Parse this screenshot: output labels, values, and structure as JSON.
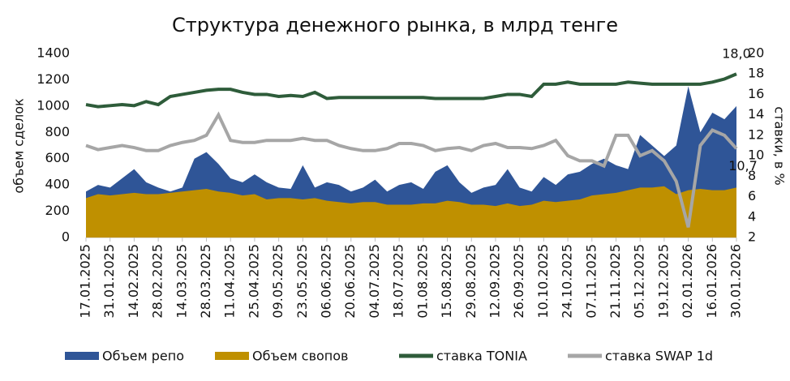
{
  "chart_data": {
    "type": "area_line",
    "title": "Структура денежного рынка, в млрд тенге",
    "y_label": "объем сделок",
    "y2_label": "ставки, в %",
    "categories": [
      "17.01.2025",
      null,
      "31.01.2025",
      null,
      "14.02.2025",
      null,
      "28.02.2025",
      null,
      "14.03.2025",
      null,
      "28.03.2025",
      null,
      "11.04.2025",
      null,
      "25.04.2025",
      null,
      "09.05.2025",
      null,
      "23.05.2025",
      null,
      "06.06.2025",
      null,
      "20.06.2025",
      null,
      "04.07.2025",
      null,
      "18.07.2025",
      null,
      "01.08.2025",
      null,
      "15.08.2025",
      null,
      "29.08.2025",
      null,
      "12.09.2025",
      null,
      "26.09.2025",
      null,
      "10.10.2025",
      null,
      "24.10.2025",
      null,
      "07.11.2025",
      null,
      "21.11.2025",
      null,
      "05.12.2025",
      null,
      "19.12.2025",
      null,
      "02.01.2026",
      null,
      "16.01.2026",
      null,
      "30.01.2026"
    ],
    "ylim": [
      0,
      1400
    ],
    "yticks": [
      0,
      200,
      400,
      600,
      800,
      1000,
      1200,
      1400
    ],
    "y2lim": [
      2,
      20
    ],
    "y2ticks": [
      2,
      4,
      6,
      8,
      10,
      12,
      14,
      16,
      18,
      20
    ],
    "legend": "bottom",
    "series": [
      {
        "name": "Объем репо",
        "kind": "area",
        "color": "#2f5597",
        "values": [
          350,
          400,
          380,
          450,
          520,
          420,
          380,
          350,
          380,
          600,
          650,
          560,
          450,
          420,
          480,
          420,
          380,
          370,
          550,
          380,
          420,
          400,
          350,
          380,
          440,
          350,
          400,
          420,
          370,
          500,
          550,
          420,
          340,
          380,
          400,
          520,
          380,
          350,
          460,
          400,
          480,
          500,
          560,
          600,
          550,
          520,
          780,
          700,
          620,
          700,
          1150,
          800,
          950,
          900,
          1000
        ]
      },
      {
        "name": "Объем свопов",
        "kind": "area",
        "color": "#bf9000",
        "values": [
          300,
          330,
          320,
          330,
          340,
          330,
          330,
          340,
          350,
          360,
          370,
          350,
          340,
          320,
          330,
          290,
          300,
          300,
          290,
          300,
          280,
          270,
          260,
          270,
          270,
          250,
          250,
          250,
          260,
          260,
          280,
          270,
          250,
          250,
          240,
          260,
          240,
          250,
          280,
          270,
          280,
          290,
          320,
          330,
          340,
          360,
          380,
          380,
          390,
          330,
          360,
          370,
          360,
          360,
          380
        ]
      },
      {
        "name": "ставка TONIA",
        "kind": "line",
        "axis": "y2",
        "color": "#2e5c3a",
        "values": [
          15,
          14.8,
          14.9,
          15,
          14.9,
          15.3,
          15,
          15.8,
          16,
          16.2,
          16.4,
          16.5,
          16.5,
          16.2,
          16,
          16,
          15.8,
          15.9,
          15.8,
          16.2,
          15.6,
          15.7,
          15.7,
          15.7,
          15.7,
          15.7,
          15.7,
          15.7,
          15.7,
          15.6,
          15.6,
          15.6,
          15.6,
          15.6,
          15.8,
          16,
          16,
          15.8,
          17,
          17,
          17.2,
          17,
          17,
          17,
          17,
          17.2,
          17.1,
          17,
          17,
          17,
          17,
          17,
          17.2,
          17.5,
          18.0
        ],
        "value_labels": [
          null,
          null,
          null,
          null,
          null,
          null,
          null,
          null,
          null,
          null,
          null,
          null,
          null,
          null,
          null,
          null,
          null,
          null,
          null,
          null,
          null,
          null,
          null,
          null,
          null,
          null,
          null,
          null,
          null,
          null,
          null,
          null,
          null,
          null,
          null,
          null,
          null,
          null,
          null,
          null,
          null,
          null,
          null,
          null,
          null,
          null,
          null,
          null,
          null,
          null,
          null,
          null,
          null,
          null,
          "18,0"
        ]
      },
      {
        "name": "ставка SWAP 1d",
        "kind": "line",
        "axis": "y2",
        "color": "#a6a6a6",
        "values": [
          11,
          10.6,
          10.8,
          11,
          10.8,
          10.5,
          10.5,
          11,
          11.3,
          11.5,
          12,
          14,
          11.5,
          11.3,
          11.3,
          11.5,
          11.5,
          11.5,
          11.7,
          11.5,
          11.5,
          11,
          10.7,
          10.5,
          10.5,
          10.7,
          11.2,
          11.2,
          11,
          10.5,
          10.7,
          10.8,
          10.5,
          11,
          11.2,
          10.8,
          10.8,
          10.7,
          11,
          11.5,
          10,
          9.5,
          9.5,
          9,
          12,
          12,
          10,
          10.5,
          9.5,
          7.5,
          3,
          11,
          12.5,
          12,
          10.7
        ],
        "value_labels": [
          null,
          null,
          null,
          null,
          null,
          null,
          null,
          null,
          null,
          null,
          null,
          null,
          null,
          null,
          null,
          null,
          null,
          null,
          null,
          null,
          null,
          null,
          null,
          null,
          null,
          null,
          null,
          null,
          null,
          null,
          null,
          null,
          null,
          null,
          null,
          null,
          null,
          null,
          null,
          null,
          null,
          null,
          null,
          null,
          null,
          null,
          null,
          null,
          null,
          null,
          null,
          null,
          null,
          null,
          "10,7"
        ]
      }
    ]
  }
}
